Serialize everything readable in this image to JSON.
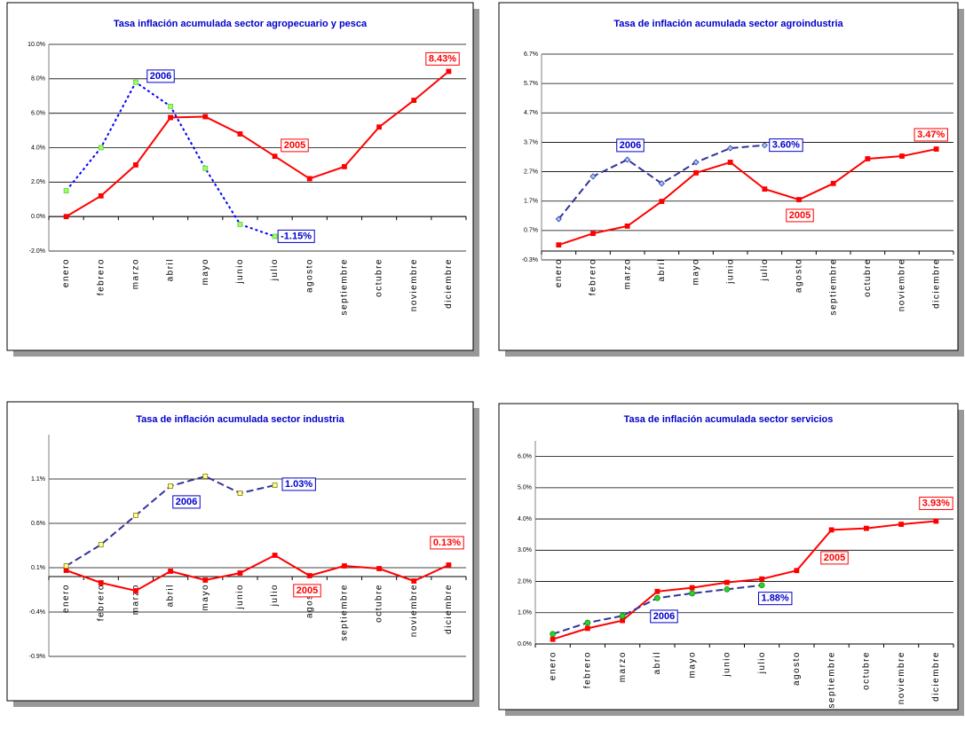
{
  "chart_data": [
    {
      "type": "line",
      "title": "Tasa inflación acumulada sector agropecuario y pesca",
      "categories": [
        "enero",
        "febrero",
        "marzo",
        "abril",
        "mayo",
        "junio",
        "julio",
        "agosto",
        "septiembre",
        "octubre",
        "noviembre",
        "diciembre"
      ],
      "ylim": [
        -2,
        10
      ],
      "yticks": [
        {
          "value": -2,
          "label": "-2.0%"
        },
        {
          "value": 0,
          "label": "0.0%"
        },
        {
          "value": 2,
          "label": "2.0%"
        },
        {
          "value": 4,
          "label": "4.0%"
        },
        {
          "value": 6,
          "label": "6.0%"
        },
        {
          "value": 8,
          "label": "8.0%"
        },
        {
          "value": 10,
          "label": "10.0%"
        }
      ],
      "grid": true,
      "series": [
        {
          "name": "2005",
          "color": "#ff0000",
          "values": [
            0.0,
            1.2,
            3.0,
            5.75,
            5.8,
            4.8,
            3.5,
            2.2,
            2.9,
            5.2,
            6.75,
            8.43
          ],
          "value_labels": [
            null,
            null,
            null,
            null,
            null,
            null,
            null,
            null,
            null,
            null,
            null,
            "8.43%"
          ]
        },
        {
          "name": "2006",
          "color": "#0000ff",
          "values": [
            1.5,
            4.0,
            7.8,
            6.4,
            2.8,
            -0.45,
            -1.15,
            null,
            null,
            null,
            null,
            null
          ],
          "value_labels": [
            null,
            null,
            null,
            null,
            null,
            null,
            "-1.15%",
            null,
            null,
            null,
            null,
            null
          ]
        }
      ]
    },
    {
      "type": "line",
      "title": "Tasa de inflación acumulada sector agroindustria",
      "categories": [
        "enero",
        "febrero",
        "marzo",
        "abril",
        "mayo",
        "junio",
        "julio",
        "agosto",
        "septiembre",
        "octubre",
        "noviembre",
        "diciembre"
      ],
      "ylim": [
        -0.3,
        6.7
      ],
      "yticks": [
        {
          "value": -0.3,
          "label": "-0.3%"
        },
        {
          "value": 0.7,
          "label": "0.7%"
        },
        {
          "value": 1.7,
          "label": "1.7%"
        },
        {
          "value": 2.7,
          "label": "2.7%"
        },
        {
          "value": 3.7,
          "label": "3.7%"
        },
        {
          "value": 4.7,
          "label": "4.7%"
        },
        {
          "value": 5.7,
          "label": "5.7%"
        },
        {
          "value": 6.7,
          "label": "6.7%"
        }
      ],
      "grid": true,
      "series": [
        {
          "name": "2005",
          "color": "#ff0000",
          "values": [
            0.21,
            0.6,
            0.85,
            1.69,
            2.66,
            3.02,
            2.11,
            1.75,
            2.3,
            3.14,
            3.23,
            3.47
          ],
          "value_labels": [
            null,
            null,
            null,
            null,
            null,
            null,
            null,
            null,
            null,
            null,
            null,
            "3.47%"
          ]
        },
        {
          "name": "2006",
          "color": "#333399",
          "values": [
            1.09,
            2.54,
            3.11,
            2.3,
            3.02,
            3.5,
            3.6,
            null,
            null,
            null,
            null,
            null
          ],
          "value_labels": [
            null,
            null,
            null,
            null,
            null,
            null,
            "3.60%",
            null,
            null,
            null,
            null,
            null
          ]
        }
      ]
    },
    {
      "type": "line",
      "title": "Tasa de inflación acumulada sector industria",
      "categories": [
        "enero",
        "febrero",
        "marzo",
        "abril",
        "mayo",
        "junio",
        "julio",
        "agosto",
        "septiembre",
        "octubre",
        "noviembre",
        "diciembre"
      ],
      "ylim": [
        -0.9,
        1.6
      ],
      "yticks": [
        {
          "value": -0.9,
          "label": "-0.9%"
        },
        {
          "value": -0.4,
          "label": "-0.4%"
        },
        {
          "value": 0.1,
          "label": "0.1%"
        },
        {
          "value": 0.6,
          "label": "0.6%"
        },
        {
          "value": 1.1,
          "label": "1.1%"
        }
      ],
      "grid": true,
      "series": [
        {
          "name": "2005",
          "color": "#ff0000",
          "values": [
            0.07,
            -0.07,
            -0.16,
            0.06,
            -0.04,
            0.04,
            0.24,
            0.01,
            0.12,
            0.09,
            -0.05,
            0.13
          ],
          "value_labels": [
            null,
            null,
            null,
            null,
            null,
            null,
            null,
            null,
            null,
            null,
            null,
            "0.13%"
          ]
        },
        {
          "name": "2006",
          "color": "#333399",
          "values": [
            0.12,
            0.36,
            0.69,
            1.02,
            1.13,
            0.94,
            1.03,
            null,
            null,
            null,
            null,
            null
          ],
          "value_labels": [
            null,
            null,
            null,
            null,
            null,
            null,
            "1.03%",
            null,
            null,
            null,
            null,
            null
          ]
        }
      ]
    },
    {
      "type": "line",
      "title": "Tasa de inflación acumulada sector servicios",
      "categories": [
        "enero",
        "febrero",
        "marzo",
        "abril",
        "mayo",
        "junio",
        "julio",
        "agosto",
        "septiembre",
        "octubre",
        "noviembre",
        "diciembre"
      ],
      "ylim": [
        0,
        6.5
      ],
      "yticks": [
        {
          "value": 0,
          "label": "0.0%"
        },
        {
          "value": 1,
          "label": "1.0%"
        },
        {
          "value": 2,
          "label": "2.0%"
        },
        {
          "value": 3,
          "label": "3.0%"
        },
        {
          "value": 4,
          "label": "4.0%"
        },
        {
          "value": 5,
          "label": "5.0%"
        },
        {
          "value": 6,
          "label": "6.0%"
        }
      ],
      "grid": true,
      "series": [
        {
          "name": "2005",
          "color": "#ff0000",
          "values": [
            0.15,
            0.5,
            0.75,
            1.68,
            1.8,
            1.97,
            2.08,
            2.35,
            3.65,
            3.7,
            3.83,
            3.93
          ],
          "value_labels": [
            null,
            null,
            null,
            null,
            null,
            null,
            null,
            null,
            null,
            null,
            null,
            "3.93%"
          ]
        },
        {
          "name": "2006",
          "color": "#333399",
          "values": [
            0.32,
            0.68,
            0.9,
            1.47,
            1.62,
            1.75,
            1.88,
            null,
            null,
            null,
            null,
            null
          ],
          "value_labels": [
            null,
            null,
            null,
            null,
            null,
            null,
            "1.88%",
            null,
            null,
            null,
            null,
            null
          ]
        }
      ]
    }
  ]
}
